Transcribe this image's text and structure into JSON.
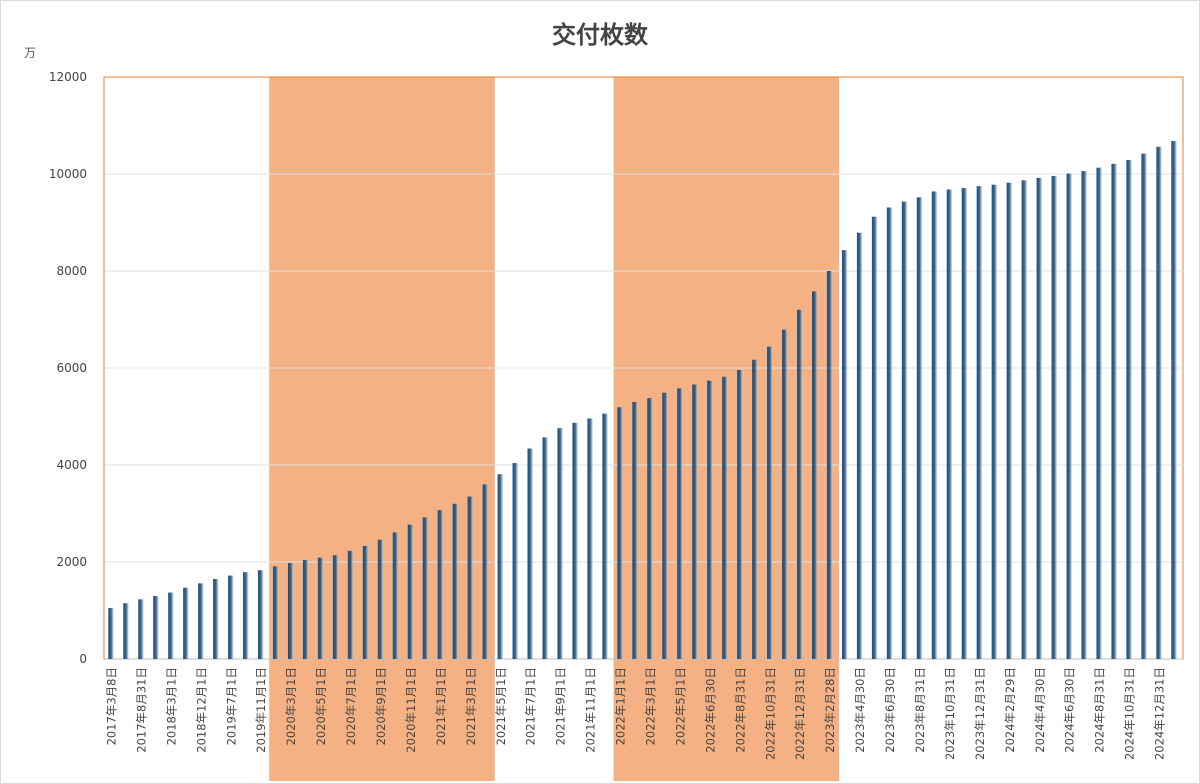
{
  "chart_data": {
    "type": "bar",
    "title": "交付枚数",
    "unit_label": "万",
    "ylim": [
      0,
      12000
    ],
    "yticks": [
      0,
      2000,
      4000,
      6000,
      8000,
      10000,
      12000
    ],
    "grid": true,
    "bar_color": "#1f4e79",
    "highlight_color": "#f4b183",
    "highlight_ranges": [
      {
        "start_index": 11,
        "end_index": 25
      },
      {
        "start_index": 34,
        "end_index": 48
      }
    ],
    "xtick_labels": [
      {
        "index": 0,
        "label": "2017年3月8日"
      },
      {
        "index": 2,
        "label": "2017年8月31日"
      },
      {
        "index": 4,
        "label": "2018年3月1日"
      },
      {
        "index": 6,
        "label": "2018年12月1日"
      },
      {
        "index": 8,
        "label": "2019年7月1日"
      },
      {
        "index": 10,
        "label": "2019年11月1日"
      },
      {
        "index": 12,
        "label": "2020年3月1日"
      },
      {
        "index": 14,
        "label": "2020年5月1日"
      },
      {
        "index": 16,
        "label": "2020年7月1日"
      },
      {
        "index": 18,
        "label": "2020年9月1日"
      },
      {
        "index": 20,
        "label": "2020年11月1日"
      },
      {
        "index": 22,
        "label": "2021年1月1日"
      },
      {
        "index": 24,
        "label": "2021年3月1日"
      },
      {
        "index": 26,
        "label": "2021年5月1日"
      },
      {
        "index": 28,
        "label": "2021年7月1日"
      },
      {
        "index": 30,
        "label": "2021年9月1日"
      },
      {
        "index": 32,
        "label": "2021年11月1日"
      },
      {
        "index": 34,
        "label": "2022年1月1日"
      },
      {
        "index": 36,
        "label": "2022年3月1日"
      },
      {
        "index": 38,
        "label": "2022年5月1日"
      },
      {
        "index": 40,
        "label": "2022年6月30日"
      },
      {
        "index": 42,
        "label": "2022年8月31日"
      },
      {
        "index": 44,
        "label": "2022年10月31日"
      },
      {
        "index": 46,
        "label": "2022年12月31日"
      },
      {
        "index": 48,
        "label": "2023年2月28日"
      },
      {
        "index": 50,
        "label": "2023年4月30日"
      },
      {
        "index": 52,
        "label": "2023年6月30日"
      },
      {
        "index": 54,
        "label": "2023年8月31日"
      },
      {
        "index": 56,
        "label": "2023年10月31日"
      },
      {
        "index": 58,
        "label": "2023年12月31日"
      },
      {
        "index": 60,
        "label": "2024年2月29日"
      },
      {
        "index": 62,
        "label": "2024年4月30日"
      },
      {
        "index": 64,
        "label": "2024年6月30日"
      },
      {
        "index": 66,
        "label": "2024年8月31日"
      },
      {
        "index": 68,
        "label": "2024年10月31日"
      },
      {
        "index": 70,
        "label": "2024年12月31日"
      }
    ],
    "values": [
      1050,
      1150,
      1230,
      1300,
      1370,
      1470,
      1560,
      1650,
      1720,
      1790,
      1830,
      1910,
      1980,
      2040,
      2090,
      2140,
      2230,
      2330,
      2460,
      2610,
      2770,
      2920,
      3070,
      3200,
      3350,
      3600,
      3810,
      4040,
      4340,
      4570,
      4760,
      4870,
      4960,
      5060,
      5190,
      5300,
      5380,
      5490,
      5580,
      5660,
      5740,
      5820,
      5960,
      6170,
      6440,
      6790,
      7200,
      7580,
      8000,
      8430,
      8790,
      9120,
      9310,
      9430,
      9520,
      9640,
      9680,
      9710,
      9750,
      9780,
      9820,
      9870,
      9920,
      9960,
      10010,
      10060,
      10130,
      10210,
      10290,
      10420,
      10560,
      10680
    ]
  }
}
